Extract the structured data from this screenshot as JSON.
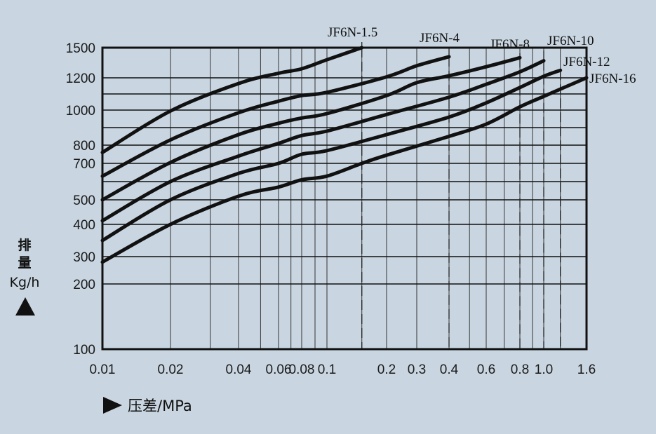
{
  "chart_data": {
    "type": "line",
    "xscale": "log",
    "ylabel_line1": "排",
    "ylabel_line2": "量",
    "ylabel_unit": "Kg/h",
    "xlabel": "压差/MPa",
    "xlim": [
      0.01,
      1.6
    ],
    "ylim": [
      100,
      1500
    ],
    "x_ticks": [
      {
        "v": 0.01,
        "label": "0.01"
      },
      {
        "v": 0.02,
        "label": "0.02"
      },
      {
        "v": 0.04,
        "label": "0.04"
      },
      {
        "v": 0.06,
        "label": "0.06"
      },
      {
        "v": 0.08,
        "label": "0.08"
      },
      {
        "v": 0.1,
        "label": "0.1"
      },
      {
        "v": 0.2,
        "label": "0.2"
      },
      {
        "v": 0.3,
        "label": "0.3"
      },
      {
        "v": 0.4,
        "label": "0.4"
      },
      {
        "v": 0.6,
        "label": "0.6"
      },
      {
        "v": 0.8,
        "label": "0.8"
      },
      {
        "v": 1.0,
        "label": "1.0"
      },
      {
        "v": 1.6,
        "label": "1.6"
      }
    ],
    "y_ticks": [
      {
        "v": 100,
        "label": "100"
      },
      {
        "v": 200,
        "label": "200"
      },
      {
        "v": 300,
        "label": "300"
      },
      {
        "v": 400,
        "label": "400"
      },
      {
        "v": 500,
        "label": "500"
      },
      {
        "v": 700,
        "label": "700"
      },
      {
        "v": 800,
        "label": "800"
      },
      {
        "v": 1000,
        "label": "1000"
      },
      {
        "v": 1200,
        "label": "1200"
      },
      {
        "v": 1500,
        "label": "1500"
      }
    ],
    "series": [
      {
        "name": "JF6N-1.5",
        "x": [
          0.01,
          0.02,
          0.04,
          0.06,
          0.08,
          0.1,
          0.15
        ],
        "y": [
          760,
          995,
          1165,
          1245,
          1290,
          1380,
          1500
        ]
      },
      {
        "name": "JF6N-4",
        "x": [
          0.01,
          0.02,
          0.04,
          0.06,
          0.08,
          0.1,
          0.2,
          0.3,
          0.4
        ],
        "y": [
          630,
          830,
          985,
          1055,
          1090,
          1110,
          1210,
          1320,
          1410
        ]
      },
      {
        "name": "JF6N-8",
        "x": [
          0.01,
          0.02,
          0.04,
          0.06,
          0.08,
          0.1,
          0.2,
          0.3,
          0.4,
          0.6,
          0.8
        ],
        "y": [
          500,
          705,
          860,
          925,
          955,
          980,
          1090,
          1170,
          1220,
          1310,
          1400
        ]
      },
      {
        "name": "JF6N-10",
        "x": [
          0.01,
          0.02,
          0.04,
          0.06,
          0.08,
          0.1,
          0.2,
          0.4,
          0.6,
          0.8,
          1.0
        ],
        "y": [
          415,
          600,
          740,
          810,
          855,
          880,
          975,
          1080,
          1160,
          1260,
          1370
        ]
      },
      {
        "name": "JF6N-12",
        "x": [
          0.01,
          0.02,
          0.04,
          0.06,
          0.08,
          0.1,
          0.2,
          0.4,
          0.6,
          0.8,
          1.0,
          1.2
        ],
        "y": [
          350,
          500,
          645,
          700,
          750,
          770,
          860,
          960,
          1045,
          1140,
          1215,
          1275
        ]
      },
      {
        "name": "JF6N-16",
        "x": [
          0.01,
          0.02,
          0.04,
          0.06,
          0.08,
          0.1,
          0.15,
          0.2,
          0.4,
          0.6,
          0.8,
          1.0,
          1.6
        ],
        "y": [
          280,
          400,
          520,
          570,
          610,
          630,
          700,
          745,
          850,
          920,
          1020,
          1085,
          1200
        ]
      }
    ]
  }
}
